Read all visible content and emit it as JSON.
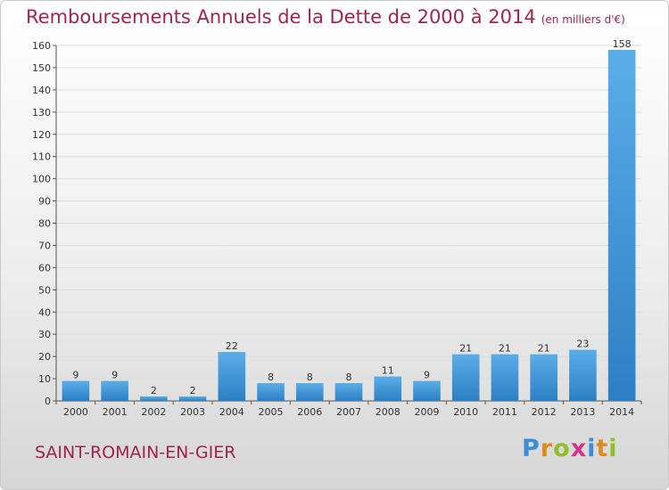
{
  "title": "Remboursements Annuels de la Dette de 2000 à 2014",
  "subtitle": "(en milliers d'€)",
  "commune": "SAINT-ROMAIN-EN-GIER",
  "logo": {
    "text": "Proxiti",
    "letter_colors": [
      "#3a8fd6",
      "#e08a1e",
      "#8fbf2b",
      "#d0368a",
      "#3a8fd6",
      "#e08a1e",
      "#8fbf2b"
    ]
  },
  "colors": {
    "title": "#a0244f",
    "bar_top": "#5aaee8",
    "bar_bottom": "#2d7fc4",
    "grid": "#dddddd"
  },
  "chart_data": {
    "type": "bar",
    "title": "Remboursements Annuels de la Dette de 2000 à 2014",
    "subtitle": "(en milliers d'€)",
    "categories": [
      "2000",
      "2001",
      "2002",
      "2003",
      "2004",
      "2005",
      "2006",
      "2007",
      "2008",
      "2009",
      "2010",
      "2011",
      "2012",
      "2013",
      "2014"
    ],
    "values": [
      9,
      9,
      2,
      2,
      22,
      8,
      8,
      8,
      11,
      9,
      21,
      21,
      21,
      23,
      158
    ],
    "ylim": [
      0,
      160
    ],
    "yticks": [
      0,
      10,
      20,
      30,
      40,
      50,
      60,
      70,
      80,
      90,
      100,
      110,
      120,
      130,
      140,
      150,
      160
    ],
    "grid": true,
    "data_labels": true,
    "xlabel": "",
    "ylabel": ""
  }
}
